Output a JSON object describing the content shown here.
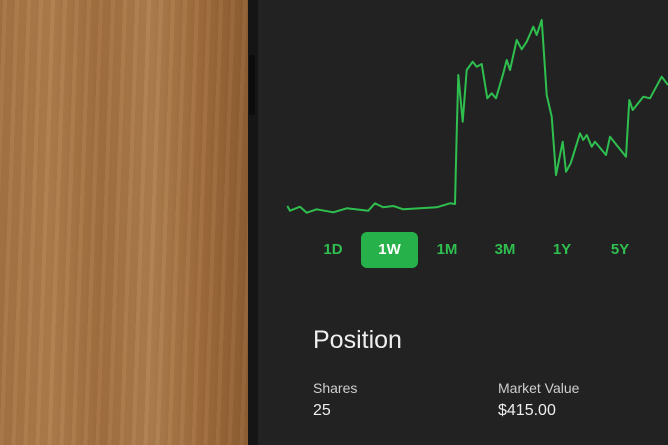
{
  "colors": {
    "accent": "#2fbf4f",
    "active_bg": "#27b14a",
    "screen_bg": "#222222"
  },
  "range_tabs": [
    {
      "label": "1D",
      "active": false
    },
    {
      "label": "1W",
      "active": true
    },
    {
      "label": "1M",
      "active": false
    },
    {
      "label": "3M",
      "active": false
    },
    {
      "label": "1Y",
      "active": false
    },
    {
      "label": "5Y",
      "active": false
    }
  ],
  "position": {
    "title": "Position",
    "shares_label": "Shares",
    "shares_value": "25",
    "market_value_label": "Market Value",
    "market_value": "$415.00"
  }
}
